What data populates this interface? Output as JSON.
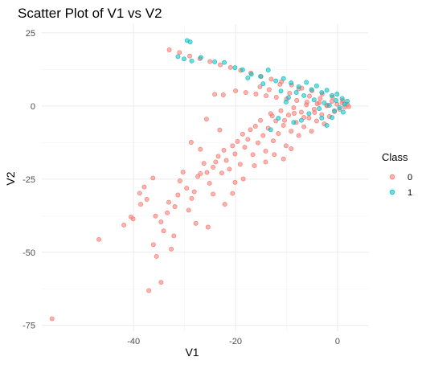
{
  "chart_data": {
    "type": "scatter",
    "title": "Scatter Plot of V1 vs V2",
    "xlabel": "V1",
    "ylabel": "V2",
    "xlim": [
      -58,
      6
    ],
    "ylim": [
      -77,
      28
    ],
    "x_ticks": [
      -40,
      -20,
      0
    ],
    "y_ticks": [
      25,
      0,
      -25,
      -50,
      -75
    ],
    "x_tick_labels": [
      "-40",
      "-20",
      "0"
    ],
    "y_tick_labels": [
      "25",
      "0",
      "-25",
      "-50",
      "-75"
    ],
    "grid": true,
    "legend": {
      "title": "Class",
      "placement": "right",
      "entries": [
        {
          "label": "0",
          "color": "#F8766D"
        },
        {
          "label": "1",
          "color": "#00BFC4"
        }
      ]
    },
    "series": [
      {
        "name": "0",
        "color": "#F8766D",
        "points": [
          [
            -56,
            -72.7
          ],
          [
            -46.8,
            -45.6
          ],
          [
            -37,
            -63.1
          ],
          [
            -34.6,
            -60.3
          ],
          [
            -35.5,
            -51.4
          ],
          [
            -41.9,
            -40.7
          ],
          [
            -40.5,
            -37.9
          ],
          [
            -40.1,
            -38.6
          ],
          [
            -38.8,
            -29.8
          ],
          [
            -38.6,
            -33.6
          ],
          [
            -37.4,
            -31.9
          ],
          [
            -37.9,
            -27.7
          ],
          [
            -36.2,
            -24.6
          ],
          [
            -35.7,
            -37.6
          ],
          [
            -34.6,
            -39.6
          ],
          [
            -34.1,
            -42.7
          ],
          [
            -33.4,
            -36.5
          ],
          [
            -33.1,
            -32.9
          ],
          [
            -32.1,
            -44.4
          ],
          [
            -31.9,
            -34.4
          ],
          [
            -31.3,
            -30.4
          ],
          [
            -30.3,
            -22.6
          ],
          [
            -29.6,
            -28.1
          ],
          [
            -29.2,
            -35.6
          ],
          [
            -28.6,
            -31.6
          ],
          [
            -28.1,
            -29.3
          ],
          [
            -27.4,
            -24.1
          ],
          [
            -26.9,
            -23.1
          ],
          [
            -26.2,
            -19.6
          ],
          [
            -25.6,
            -22.7
          ],
          [
            -25.1,
            -26.4
          ],
          [
            -24.4,
            -20.9
          ],
          [
            -23.9,
            -19.1
          ],
          [
            -23.4,
            -17.2
          ],
          [
            -22.7,
            -22.9
          ],
          [
            -22.3,
            -15.1
          ],
          [
            -21.8,
            -18.6
          ],
          [
            -21.2,
            -21.6
          ],
          [
            -20.6,
            -13.6
          ],
          [
            -20.1,
            -16.4
          ],
          [
            -19.6,
            -12.1
          ],
          [
            -19.1,
            -19.9
          ],
          [
            -18.6,
            -9.6
          ],
          [
            -18.2,
            -14.1
          ],
          [
            -17.6,
            -11.4
          ],
          [
            -17.1,
            -8.1
          ],
          [
            -16.6,
            -16.6
          ],
          [
            -16.1,
            -6.9
          ],
          [
            -15.6,
            -12.6
          ],
          [
            -15.1,
            -4.9
          ],
          [
            -14.6,
            -10.1
          ],
          [
            -14.1,
            -15.4
          ],
          [
            -13.6,
            -7.6
          ],
          [
            -13.1,
            -2.6
          ],
          [
            -12.6,
            -11.9
          ],
          [
            -12.1,
            -5.1
          ],
          [
            -11.6,
            -9.4
          ],
          [
            -11.1,
            -1.6
          ],
          [
            -10.6,
            -6.6
          ],
          [
            -10.1,
            -13.6
          ],
          [
            -9.6,
            -3.1
          ],
          [
            -9.1,
            -8.6
          ],
          [
            -8.6,
            -0.6
          ],
          [
            -8.1,
            -5.6
          ],
          [
            -7.6,
            -10.1
          ],
          [
            -7.1,
            -2.1
          ],
          [
            -6.6,
            -7.1
          ],
          [
            -6.1,
            0.4
          ],
          [
            -5.6,
            -4.1
          ],
          [
            -5.1,
            -8.6
          ],
          [
            -4.6,
            -1.1
          ],
          [
            -4.1,
            -5.1
          ],
          [
            -3.6,
            1.1
          ],
          [
            -3.1,
            -2.9
          ],
          [
            -2.6,
            -6.1
          ],
          [
            -2.1,
            0.1
          ],
          [
            -1.6,
            -3.6
          ],
          [
            -1.1,
            1.6
          ],
          [
            -0.6,
            -1.9
          ],
          [
            -0.1,
            0.6
          ],
          [
            0.4,
            -1.1
          ],
          [
            0.9,
            1.1
          ],
          [
            1.4,
            -0.4
          ],
          [
            1.9,
            0.6
          ],
          [
            2.2,
            -0.2
          ],
          [
            -33,
            19.2
          ],
          [
            -31,
            18.3
          ],
          [
            -29,
            17.1
          ],
          [
            -27,
            16.2
          ],
          [
            -25,
            15.2
          ],
          [
            -23,
            14.1
          ],
          [
            -21,
            13.2
          ],
          [
            -19,
            12.2
          ],
          [
            -17,
            11.3
          ],
          [
            -15,
            10.1
          ],
          [
            -13,
            9.2
          ],
          [
            -11,
            8.3
          ],
          [
            -9,
            7.2
          ],
          [
            -7,
            6.1
          ],
          [
            -5,
            5.2
          ],
          [
            -3,
            4.1
          ],
          [
            -1,
            3.1
          ],
          [
            1,
            1.9
          ],
          [
            -20,
            5.2
          ],
          [
            -18,
            4.6
          ],
          [
            -16,
            4.1
          ],
          [
            -14,
            3.5
          ],
          [
            -12,
            3.0
          ],
          [
            -10,
            2.4
          ],
          [
            -8,
            1.9
          ],
          [
            -6,
            1.3
          ],
          [
            -4,
            0.8
          ],
          [
            -2,
            0.3
          ],
          [
            -24.1,
            4.0
          ],
          [
            -22.4,
            3.8
          ],
          [
            -15.2,
            6.6
          ],
          [
            -13.4,
            5.6
          ],
          [
            -11.3,
            7.4
          ],
          [
            -9.4,
            4.4
          ],
          [
            -7.6,
            5.9
          ],
          [
            -5.5,
            3.4
          ],
          [
            -3.4,
            2.6
          ],
          [
            -12.8,
            -3.4
          ],
          [
            -10.4,
            -4.9
          ],
          [
            -8.5,
            -2.5
          ],
          [
            -6.6,
            -3.9
          ],
          [
            -4.5,
            -2.2
          ],
          [
            -25.7,
            -4.5
          ],
          [
            -23.1,
            -8.2
          ],
          [
            -26.9,
            -14.8
          ],
          [
            -28.7,
            -12.4
          ],
          [
            -24.4,
            -30.1
          ],
          [
            -22.1,
            -33.6
          ],
          [
            -20.6,
            -29.9
          ],
          [
            -18.5,
            -24.9
          ],
          [
            -16.3,
            -20.4
          ],
          [
            -14.1,
            -19.1
          ],
          [
            -12.4,
            -16.6
          ],
          [
            -10.6,
            -18.1
          ],
          [
            -9.1,
            -14.6
          ],
          [
            -20.1,
            -26.1
          ],
          [
            -27.8,
            -40.1
          ],
          [
            -25.4,
            -41.4
          ],
          [
            -30.9,
            -25.6
          ],
          [
            -36.1,
            -47.4
          ],
          [
            -32.6,
            -48.9
          ]
        ]
      },
      {
        "name": "1",
        "color": "#00BFC4",
        "points": [
          [
            -29.5,
            22.4
          ],
          [
            -28.9,
            21.9
          ],
          [
            -31.3,
            16.9
          ],
          [
            -30.1,
            16.1
          ],
          [
            -28.6,
            15.4
          ],
          [
            -26.8,
            16.6
          ],
          [
            -24.1,
            15.1
          ],
          [
            -22.2,
            14.9
          ],
          [
            -20.1,
            13.1
          ],
          [
            -18.6,
            12.4
          ],
          [
            -16.9,
            10.9
          ],
          [
            -15.1,
            10.1
          ],
          [
            -13.6,
            12.3
          ],
          [
            -12.1,
            8.6
          ],
          [
            -10.6,
            9.4
          ],
          [
            -9.1,
            7.9
          ],
          [
            -7.6,
            6.6
          ],
          [
            -6.1,
            8.1
          ],
          [
            -5.1,
            5.6
          ],
          [
            -4.1,
            6.9
          ],
          [
            -3.1,
            4.6
          ],
          [
            -2.1,
            5.4
          ],
          [
            -1.1,
            3.6
          ],
          [
            -0.1,
            4.1
          ],
          [
            0.9,
            2.6
          ],
          [
            1.9,
            1.6
          ],
          [
            -2.6,
            1.1
          ],
          [
            -1.6,
            0.2
          ],
          [
            -0.6,
            -1.6
          ],
          [
            0.4,
            -0.6
          ],
          [
            1.4,
            0.6
          ],
          [
            -4.6,
            2.1
          ],
          [
            -3.6,
            -0.9
          ],
          [
            -5.6,
            -2.6
          ],
          [
            -7.1,
            -4.9
          ],
          [
            -8.6,
            -5.6
          ],
          [
            -10.1,
            1.4
          ],
          [
            -11.6,
            -4.2
          ],
          [
            -13.1,
            -8.1
          ],
          [
            -1.1,
            -3.9
          ],
          [
            -2.1,
            -6.6
          ],
          [
            -3.1,
            -4.1
          ],
          [
            -0.3,
            1.9
          ],
          [
            1.1,
            -2.1
          ],
          [
            -6.6,
            3.6
          ],
          [
            -8.1,
            4.6
          ],
          [
            -9.6,
            2.9
          ],
          [
            -11.1,
            5.1
          ],
          [
            -14.6,
            7.6
          ],
          [
            -17.6,
            9.6
          ]
        ]
      }
    ]
  }
}
